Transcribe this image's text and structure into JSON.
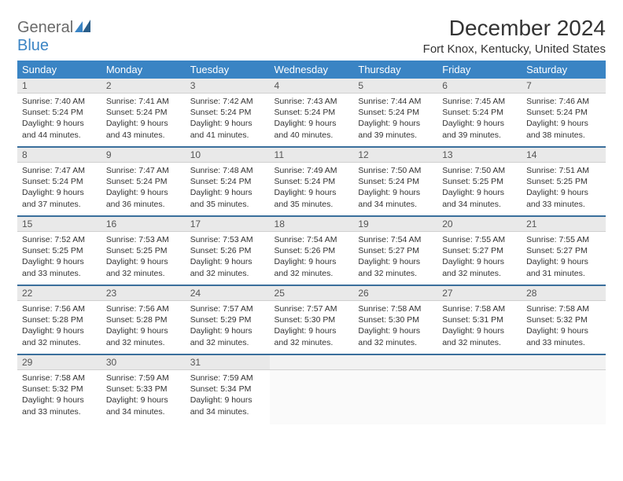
{
  "brand": {
    "text1": "General",
    "text2": "Blue"
  },
  "title": "December 2024",
  "location": "Fort Knox, Kentucky, United States",
  "colors": {
    "header_bg": "#3a84c4",
    "header_fg": "#ffffff",
    "daynum_bg": "#e9e9e9",
    "rule": "#3a6f9c",
    "logo_gray": "#6a6a6a",
    "logo_blue": "#3a84c4"
  },
  "weekdays": [
    "Sunday",
    "Monday",
    "Tuesday",
    "Wednesday",
    "Thursday",
    "Friday",
    "Saturday"
  ],
  "days": [
    {
      "n": 1,
      "sunrise": "7:40 AM",
      "sunset": "5:24 PM",
      "daylight": "9 hours and 44 minutes."
    },
    {
      "n": 2,
      "sunrise": "7:41 AM",
      "sunset": "5:24 PM",
      "daylight": "9 hours and 43 minutes."
    },
    {
      "n": 3,
      "sunrise": "7:42 AM",
      "sunset": "5:24 PM",
      "daylight": "9 hours and 41 minutes."
    },
    {
      "n": 4,
      "sunrise": "7:43 AM",
      "sunset": "5:24 PM",
      "daylight": "9 hours and 40 minutes."
    },
    {
      "n": 5,
      "sunrise": "7:44 AM",
      "sunset": "5:24 PM",
      "daylight": "9 hours and 39 minutes."
    },
    {
      "n": 6,
      "sunrise": "7:45 AM",
      "sunset": "5:24 PM",
      "daylight": "9 hours and 39 minutes."
    },
    {
      "n": 7,
      "sunrise": "7:46 AM",
      "sunset": "5:24 PM",
      "daylight": "9 hours and 38 minutes."
    },
    {
      "n": 8,
      "sunrise": "7:47 AM",
      "sunset": "5:24 PM",
      "daylight": "9 hours and 37 minutes."
    },
    {
      "n": 9,
      "sunrise": "7:47 AM",
      "sunset": "5:24 PM",
      "daylight": "9 hours and 36 minutes."
    },
    {
      "n": 10,
      "sunrise": "7:48 AM",
      "sunset": "5:24 PM",
      "daylight": "9 hours and 35 minutes."
    },
    {
      "n": 11,
      "sunrise": "7:49 AM",
      "sunset": "5:24 PM",
      "daylight": "9 hours and 35 minutes."
    },
    {
      "n": 12,
      "sunrise": "7:50 AM",
      "sunset": "5:24 PM",
      "daylight": "9 hours and 34 minutes."
    },
    {
      "n": 13,
      "sunrise": "7:50 AM",
      "sunset": "5:25 PM",
      "daylight": "9 hours and 34 minutes."
    },
    {
      "n": 14,
      "sunrise": "7:51 AM",
      "sunset": "5:25 PM",
      "daylight": "9 hours and 33 minutes."
    },
    {
      "n": 15,
      "sunrise": "7:52 AM",
      "sunset": "5:25 PM",
      "daylight": "9 hours and 33 minutes."
    },
    {
      "n": 16,
      "sunrise": "7:53 AM",
      "sunset": "5:25 PM",
      "daylight": "9 hours and 32 minutes."
    },
    {
      "n": 17,
      "sunrise": "7:53 AM",
      "sunset": "5:26 PM",
      "daylight": "9 hours and 32 minutes."
    },
    {
      "n": 18,
      "sunrise": "7:54 AM",
      "sunset": "5:26 PM",
      "daylight": "9 hours and 32 minutes."
    },
    {
      "n": 19,
      "sunrise": "7:54 AM",
      "sunset": "5:27 PM",
      "daylight": "9 hours and 32 minutes."
    },
    {
      "n": 20,
      "sunrise": "7:55 AM",
      "sunset": "5:27 PM",
      "daylight": "9 hours and 32 minutes."
    },
    {
      "n": 21,
      "sunrise": "7:55 AM",
      "sunset": "5:27 PM",
      "daylight": "9 hours and 31 minutes."
    },
    {
      "n": 22,
      "sunrise": "7:56 AM",
      "sunset": "5:28 PM",
      "daylight": "9 hours and 32 minutes."
    },
    {
      "n": 23,
      "sunrise": "7:56 AM",
      "sunset": "5:28 PM",
      "daylight": "9 hours and 32 minutes."
    },
    {
      "n": 24,
      "sunrise": "7:57 AM",
      "sunset": "5:29 PM",
      "daylight": "9 hours and 32 minutes."
    },
    {
      "n": 25,
      "sunrise": "7:57 AM",
      "sunset": "5:30 PM",
      "daylight": "9 hours and 32 minutes."
    },
    {
      "n": 26,
      "sunrise": "7:58 AM",
      "sunset": "5:30 PM",
      "daylight": "9 hours and 32 minutes."
    },
    {
      "n": 27,
      "sunrise": "7:58 AM",
      "sunset": "5:31 PM",
      "daylight": "9 hours and 32 minutes."
    },
    {
      "n": 28,
      "sunrise": "7:58 AM",
      "sunset": "5:32 PM",
      "daylight": "9 hours and 33 minutes."
    },
    {
      "n": 29,
      "sunrise": "7:58 AM",
      "sunset": "5:32 PM",
      "daylight": "9 hours and 33 minutes."
    },
    {
      "n": 30,
      "sunrise": "7:59 AM",
      "sunset": "5:33 PM",
      "daylight": "9 hours and 34 minutes."
    },
    {
      "n": 31,
      "sunrise": "7:59 AM",
      "sunset": "5:34 PM",
      "daylight": "9 hours and 34 minutes."
    }
  ],
  "labels": {
    "sunrise": "Sunrise:",
    "sunset": "Sunset:",
    "daylight": "Daylight:"
  },
  "layout": {
    "start_weekday": 0,
    "rows": 5,
    "cols": 7
  }
}
